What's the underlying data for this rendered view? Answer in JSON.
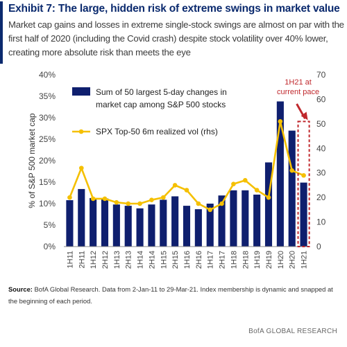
{
  "header": {
    "title": "Exhibit 7: The large, hidden risk of extreme swings in market value",
    "subtitle": "Market cap gains and losses in extreme single-stock swings are almost on par with the first half of 2020 (including the Covid crash) despite stock volatility over 40% lower, creating more absolute risk than meets the eye"
  },
  "footer": {
    "source_label": "Source:",
    "source_text": "BofA Global Research. Data from 2-Jan-11 to 29-Mar-21. Index membership is dynamic and snapped at the beginning of each period.",
    "brand": "BofA GLOBAL RESEARCH"
  },
  "colors": {
    "bar": "#0f1f6e",
    "line": "#f5c000",
    "annotation": "#c0282d",
    "grid_text": "#444444"
  },
  "chart_data": {
    "type": "bar",
    "categories": [
      "1H11",
      "2H11",
      "1H12",
      "2H12",
      "1H13",
      "2H13",
      "1H14",
      "2H14",
      "1H15",
      "2H15",
      "1H16",
      "2H16",
      "1H17",
      "2H17",
      "1H18",
      "2H18",
      "1H19",
      "2H19",
      "1H20",
      "2H20",
      "1H21"
    ],
    "series": [
      {
        "name": "Sum of 50 largest 5-day changes in market cap among S&P 500 stocks",
        "type": "bar",
        "axis": "left",
        "values": [
          10.8,
          13.4,
          11.3,
          11.2,
          9.8,
          9.5,
          8.9,
          9.8,
          10.9,
          11.7,
          9.5,
          8.7,
          10.0,
          11.9,
          13.1,
          13.1,
          12.1,
          19.6,
          33.8,
          27.0,
          14.9
        ]
      },
      {
        "name": "SPX Top-50 6m realized vol (rhs)",
        "type": "line",
        "axis": "right",
        "values": [
          20,
          32,
          19.5,
          19.5,
          18,
          17.5,
          17.5,
          19,
          20,
          25,
          23,
          17.5,
          15,
          17.5,
          25.5,
          27,
          23,
          20,
          51,
          31,
          29
        ]
      }
    ],
    "ylabel": "% of S&P 500 market cap",
    "ylim": [
      0,
      40
    ],
    "y_ticks": [
      "0%",
      "5%",
      "10%",
      "15%",
      "20%",
      "25%",
      "30%",
      "35%",
      "40%"
    ],
    "y2lim": [
      0,
      70
    ],
    "y2_ticks": [
      "0",
      "10",
      "20",
      "30",
      "40",
      "50",
      "60",
      "70"
    ],
    "legend_position": "top-left",
    "grid": false,
    "annotation": {
      "text_line1": "1H21 at",
      "text_line2": "current pace",
      "target": "1H21",
      "bar_value": 28.5,
      "line_value": 51
    }
  }
}
